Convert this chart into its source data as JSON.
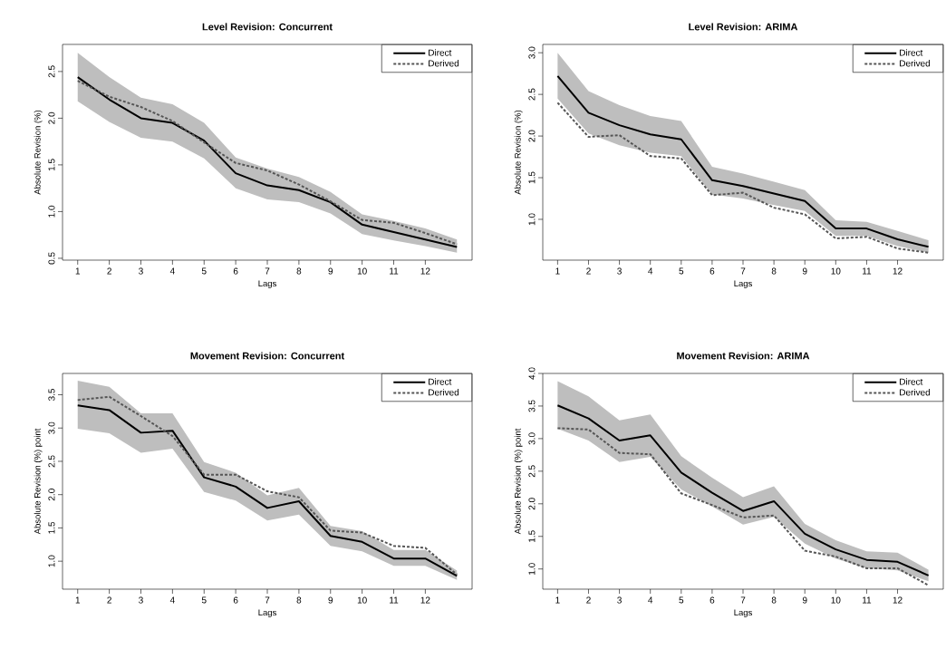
{
  "chart_data": [
    {
      "type": "line",
      "title": "Level Revision: Concurrent",
      "xlabel": "Lags",
      "ylabel": "Absolute Revision (%)",
      "legend": "top right",
      "x": [
        1,
        2,
        3,
        4,
        5,
        6,
        7,
        8,
        9,
        10,
        11,
        12,
        13
      ],
      "xlim": [
        0.52,
        13.48
      ],
      "xticks": [
        1,
        2,
        3,
        4,
        5,
        6,
        7,
        8,
        9,
        10,
        11,
        12
      ],
      "ylim": [
        0.48,
        2.79
      ],
      "yticks": [
        0.5,
        {
          "value": 1,
          "label": "1.0"
        },
        1.5,
        {
          "value": 2,
          "label": "2.0"
        },
        2.5
      ],
      "series": [
        {
          "name": "Direct",
          "color": "#000000",
          "line_style": "solid",
          "values": [
            2.44,
            2.2,
            2.0,
            1.95,
            1.76,
            1.41,
            1.28,
            1.23,
            1.1,
            0.86,
            0.78,
            0.7,
            0.62
          ],
          "upper": [
            2.7,
            2.44,
            2.22,
            2.15,
            1.95,
            1.58,
            1.46,
            1.37,
            1.21,
            0.97,
            0.9,
            0.82,
            0.7
          ],
          "lower": [
            2.18,
            1.96,
            1.79,
            1.75,
            1.57,
            1.25,
            1.13,
            1.1,
            0.98,
            0.76,
            0.69,
            0.63,
            0.56
          ]
        },
        {
          "name": "Derived",
          "color": "#555555",
          "line_style": "dashed",
          "values": [
            2.4,
            2.23,
            2.12,
            1.97,
            1.74,
            1.52,
            1.44,
            1.29,
            1.11,
            0.91,
            0.88,
            0.77,
            0.65
          ]
        }
      ]
    },
    {
      "type": "line",
      "title": "Level Revision: ARIMA",
      "xlabel": "Lags",
      "ylabel": "Absolute Revision (%)",
      "legend": "top right",
      "x": [
        1,
        2,
        3,
        4,
        5,
        6,
        7,
        8,
        9,
        10,
        11,
        12,
        13
      ],
      "xlim": [
        0.52,
        13.48
      ],
      "xticks": [
        1,
        2,
        3,
        4,
        5,
        6,
        7,
        8,
        9,
        10,
        11,
        12
      ],
      "ylim": [
        0.51,
        3.1
      ],
      "yticks": [
        {
          "value": 1,
          "label": "1.0"
        },
        1.5,
        {
          "value": 2,
          "label": "2.0"
        },
        2.5,
        {
          "value": 3,
          "label": "3.0"
        }
      ],
      "series": [
        {
          "name": "Direct",
          "color": "#000000",
          "line_style": "solid",
          "values": [
            2.72,
            2.28,
            2.13,
            2.02,
            1.96,
            1.47,
            1.4,
            1.31,
            1.22,
            0.89,
            0.89,
            0.76,
            0.67
          ],
          "upper": [
            3.0,
            2.54,
            2.37,
            2.24,
            2.18,
            1.63,
            1.55,
            1.45,
            1.35,
            0.99,
            0.97,
            0.86,
            0.75
          ],
          "lower": [
            2.45,
            2.03,
            1.89,
            1.8,
            1.76,
            1.3,
            1.25,
            1.17,
            1.1,
            0.8,
            0.8,
            0.68,
            0.6
          ]
        },
        {
          "name": "Derived",
          "color": "#555555",
          "line_style": "dashed",
          "values": [
            2.4,
            1.99,
            2.01,
            1.76,
            1.73,
            1.29,
            1.32,
            1.14,
            1.06,
            0.77,
            0.79,
            0.65,
            0.6
          ]
        }
      ]
    },
    {
      "type": "line",
      "title": "Movement Revision: Concurrent",
      "xlabel": "Lags",
      "ylabel": "Absolute Revision (%) point",
      "legend": "top right",
      "x": [
        1,
        2,
        3,
        4,
        5,
        6,
        7,
        8,
        9,
        10,
        11,
        12,
        13
      ],
      "xlim": [
        0.52,
        13.48
      ],
      "xticks": [
        1,
        2,
        3,
        4,
        5,
        6,
        7,
        8,
        9,
        10,
        11,
        12
      ],
      "ylim": [
        0.58,
        3.82
      ],
      "yticks": [
        {
          "value": 1,
          "label": "1.0"
        },
        1.5,
        {
          "value": 2,
          "label": "2.0"
        },
        2.5,
        {
          "value": 3,
          "label": "3.0"
        },
        3.5
      ],
      "series": [
        {
          "name": "Direct",
          "color": "#000000",
          "line_style": "solid",
          "values": [
            3.34,
            3.27,
            2.93,
            2.96,
            2.26,
            2.12,
            1.8,
            1.9,
            1.38,
            1.29,
            1.04,
            1.04,
            0.78
          ],
          "upper": [
            3.71,
            3.62,
            3.22,
            3.22,
            2.49,
            2.33,
            1.99,
            2.1,
            1.53,
            1.45,
            1.17,
            1.17,
            0.86
          ],
          "lower": [
            2.99,
            2.92,
            2.63,
            2.69,
            2.04,
            1.91,
            1.61,
            1.7,
            1.23,
            1.15,
            0.93,
            0.93,
            0.72
          ]
        },
        {
          "name": "Derived",
          "color": "#555555",
          "line_style": "dashed",
          "values": [
            3.42,
            3.47,
            3.18,
            2.88,
            2.3,
            2.3,
            2.05,
            1.96,
            1.46,
            1.43,
            1.23,
            1.2,
            0.8
          ]
        }
      ]
    },
    {
      "type": "line",
      "title": "Movement Revision: ARIMA",
      "xlabel": "Lags",
      "ylabel": "Absolute Revision (%) point",
      "legend": "top right",
      "x": [
        1,
        2,
        3,
        4,
        5,
        6,
        7,
        8,
        9,
        10,
        11,
        12,
        13
      ],
      "xlim": [
        0.52,
        13.48
      ],
      "xticks": [
        1,
        2,
        3,
        4,
        5,
        6,
        7,
        8,
        9,
        10,
        11,
        12
      ],
      "ylim": [
        0.69,
        4.0
      ],
      "yticks": [
        {
          "value": 1,
          "label": "1.0"
        },
        1.5,
        {
          "value": 2,
          "label": "2.0"
        },
        2.5,
        {
          "value": 3,
          "label": "3.0"
        },
        3.5,
        {
          "value": 4,
          "label": "4.0"
        }
      ],
      "series": [
        {
          "name": "Direct",
          "color": "#000000",
          "line_style": "solid",
          "values": [
            3.51,
            3.31,
            2.97,
            3.05,
            2.48,
            2.17,
            1.89,
            2.04,
            1.54,
            1.3,
            1.14,
            1.11,
            0.9
          ],
          "upper": [
            3.88,
            3.65,
            3.28,
            3.37,
            2.73,
            2.4,
            2.1,
            2.27,
            1.69,
            1.44,
            1.27,
            1.25,
            0.99
          ],
          "lower": [
            3.15,
            2.97,
            2.64,
            2.72,
            2.22,
            1.96,
            1.68,
            1.8,
            1.39,
            1.16,
            1.01,
            0.98,
            0.81
          ]
        },
        {
          "name": "Derived",
          "color": "#555555",
          "line_style": "dashed",
          "values": [
            3.16,
            3.14,
            2.78,
            2.76,
            2.16,
            1.98,
            1.79,
            1.82,
            1.28,
            1.19,
            1.01,
            1.01,
            0.75
          ]
        }
      ]
    }
  ]
}
